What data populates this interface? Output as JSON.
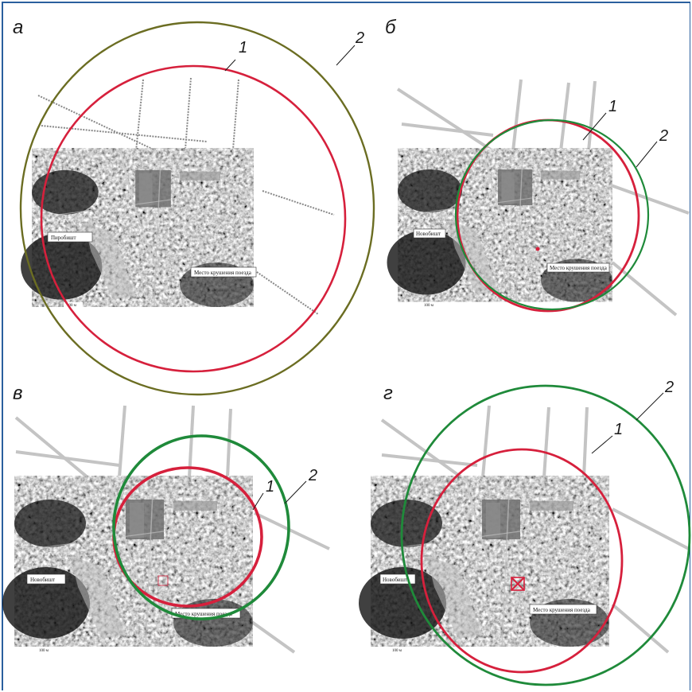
{
  "figure": {
    "panels": [
      {
        "id": "a",
        "letter": "а",
        "marker1": "1",
        "marker2": "2",
        "label_village": "Пиробишт",
        "label_site": "Место крушения поезда",
        "scale": "100 м",
        "circle1_color": "#d6203c",
        "circle2_color": "#6b6d22"
      },
      {
        "id": "b",
        "letter": "б",
        "marker1": "1",
        "marker2": "2",
        "label_village": "Новобишт",
        "label_site": "Место крушения поезда",
        "scale": "100 м",
        "circle1_color": "#d6203c",
        "circle2_color": "#1f8a3a"
      },
      {
        "id": "v",
        "letter": "в",
        "marker1": "1",
        "marker2": "2",
        "label_village": "Новобишт",
        "label_site": "Место крушения поезда",
        "scale": "100 м",
        "circle1_color": "#d6203c",
        "circle2_color": "#1f8a3a"
      },
      {
        "id": "g",
        "letter": "г",
        "marker1": "1",
        "marker2": "2",
        "label_village": "Новобишт",
        "label_site": "Место крушения поезда",
        "scale": "100 м",
        "circle1_color": "#d6203c",
        "circle2_color": "#1f8a3a"
      }
    ],
    "border_color": "#2a5f9e"
  }
}
